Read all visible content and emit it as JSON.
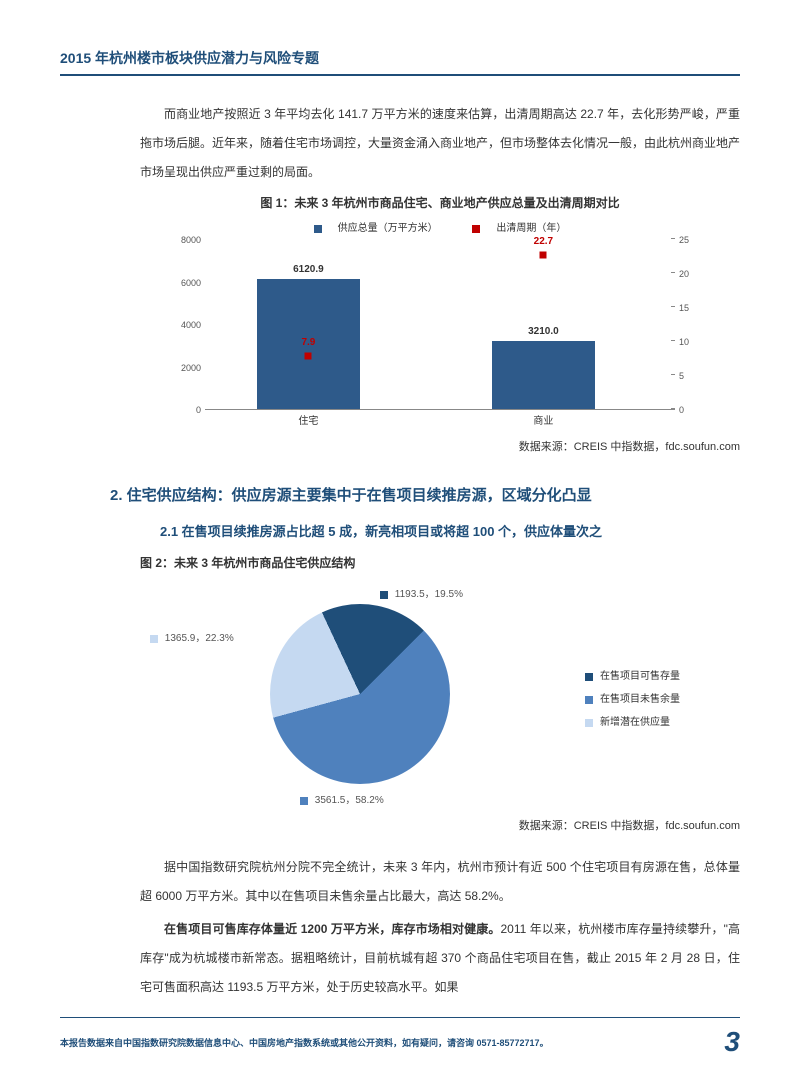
{
  "header": {
    "title": "2015 年杭州楼市板块供应潜力与风险专题"
  },
  "para1": "而商业地产按照近 3 年平均去化 141.7 万平方米的速度来估算，出清周期高达 22.7 年，去化形势严峻，严重拖市场后腿。近年来，随着住宅市场调控，大量资金涌入商业地产，但市场整体去化情况一般，由此杭州商业地产市场呈现出供应严重过剩的局面。",
  "fig1": {
    "title": "图 1：未来 3 年杭州市商品住宅、商业地产供应总量及出清周期对比",
    "legend": {
      "bars": "供应总量（万平方米）",
      "markers": "出清周期（年）"
    },
    "categories": [
      "住宅",
      "商业"
    ],
    "bar_values": [
      6120.9,
      3210.0
    ],
    "bar_color": "#2e5a8a",
    "y_left_max": 8000,
    "y_left_step": 2000,
    "marker_values": [
      7.9,
      22.7
    ],
    "marker_color": "#c00000",
    "y_right_max": 25,
    "y_right_step": 5,
    "source": "数据来源：CREIS 中指数据，fdc.soufun.com"
  },
  "section2": {
    "h2": "2. 住宅供应结构：供应房源主要集中于在售项目续推房源，区域分化凸显",
    "h3": "2.1 在售项目续推房源占比超 5 成，新亮相项目或将超 100 个，供应体量次之"
  },
  "fig2": {
    "title": "图 2：未来 3 年杭州市商品住宅供应结构",
    "slices": [
      {
        "label": "在售项目可售存量",
        "value": 1193.5,
        "pct": 19.5,
        "color": "#1f4e79"
      },
      {
        "label": "在售项目未售余量",
        "value": 3561.5,
        "pct": 58.2,
        "color": "#4f81bd"
      },
      {
        "label": "新增潜在供应量",
        "value": 1365.9,
        "pct": 22.3,
        "color": "#c5d9f1"
      }
    ],
    "label_top": "1193.5，19.5%",
    "label_bottom": "3561.5，58.2%",
    "label_left": "1365.9，22.3%",
    "source": "数据来源：CREIS 中指数据，fdc.soufun.com"
  },
  "para2": "据中国指数研究院杭州分院不完全统计，未来 3 年内，杭州市预计有近 500 个住宅项目有房源在售，总体量超 6000 万平方米。其中以在售项目未售余量占比最大，高达 58.2%。",
  "para3_lead": "在售项目可售库存体量近 1200 万平方米，库存市场相对健康。",
  "para3_rest": "2011 年以来，杭州楼市库存量持续攀升，\"高库存\"成为杭城楼市新常态。据粗略统计，目前杭城有超 370 个商品住宅项目在售，截止 2015 年 2 月 28 日，住宅可售面积高达 1193.5 万平方米，处于历史较高水平。如果",
  "footer": {
    "text": "本报告数据来自中国指数研究院数据信息中心、中国房地产指数系统或其他公开资料，如有疑问，请咨询 0571-85772717。",
    "page": "3"
  }
}
